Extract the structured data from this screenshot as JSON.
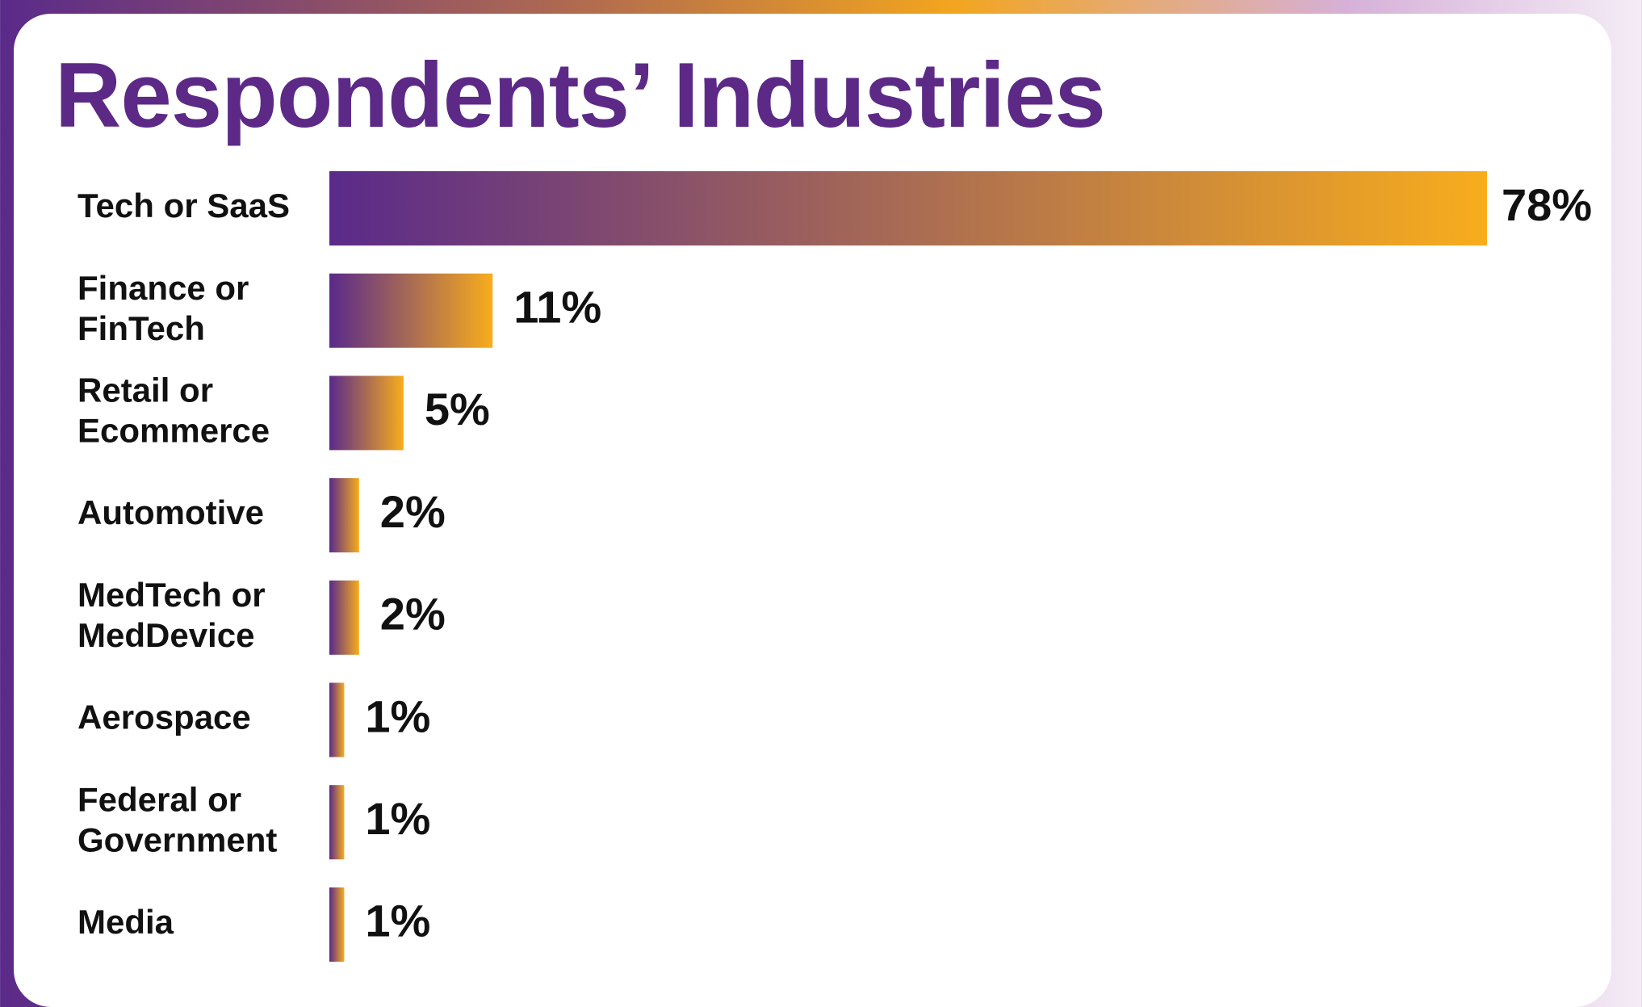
{
  "colors": {
    "title": "#5c2a86",
    "bar_start": "#5a2a8a",
    "bar_end": "#f8ad1c",
    "text": "#111111",
    "card": "#ffffff"
  },
  "chart_data": {
    "type": "bar",
    "orientation": "horizontal",
    "title": "Respondents’ Industries",
    "value_unit": "%",
    "categories": [
      [
        "Tech or SaaS"
      ],
      [
        "Finance or",
        "FinTech"
      ],
      [
        "Retail or",
        "Ecommerce"
      ],
      [
        "Automotive"
      ],
      [
        "MedTech or",
        "MedDevice"
      ],
      [
        "Aerospace"
      ],
      [
        "Federal or",
        "Government"
      ],
      [
        "Media"
      ]
    ],
    "values": [
      78,
      11,
      5,
      2,
      2,
      1,
      1,
      1
    ],
    "value_labels": [
      "78%",
      "11%",
      "5%",
      "2%",
      "2%",
      "1%",
      "1%",
      "1%"
    ],
    "xlim": [
      0,
      78
    ],
    "grid": false,
    "legend": "none"
  }
}
